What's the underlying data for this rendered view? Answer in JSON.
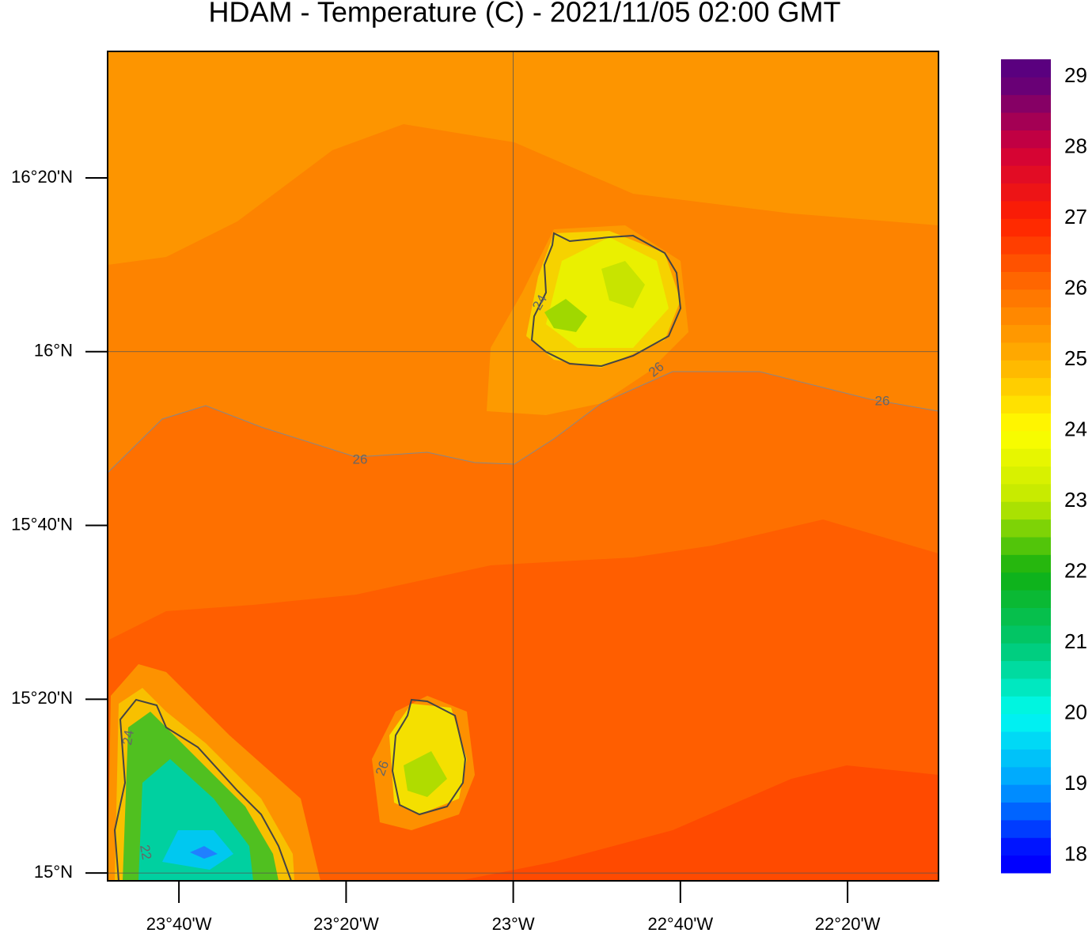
{
  "map": {
    "title": "HDAM - Temperature (C)  -  2021/11/05  02:00 GMT",
    "xlim": [
      -23.8089,
      -22.152
    ],
    "ylim": [
      14.985,
      16.576
    ],
    "xticks": [
      {
        "value": -23.6667,
        "label": "23°40'W"
      },
      {
        "value": -23.3333,
        "label": "23°20'W"
      },
      {
        "value": -23,
        "label": "23°W"
      },
      {
        "value": -22.6667,
        "label": "22°40'W"
      },
      {
        "value": -22.3333,
        "label": "22°20'W"
      }
    ],
    "yticks": [
      {
        "value": 16.3333,
        "label": "16°20'N"
      },
      {
        "value": 16,
        "label": "16°N"
      },
      {
        "value": 15.6667,
        "label": "15°40'N"
      },
      {
        "value": 15.3333,
        "label": "15°20'N"
      },
      {
        "value": 15,
        "label": "15°N"
      }
    ],
    "grid_x": [
      -23
    ],
    "grid_y": [
      16,
      15
    ],
    "contour_labels": [
      "26",
      "26",
      "26",
      "24",
      "24",
      "26",
      "22"
    ],
    "colorbar": {
      "range": [
        17.75,
        29.25
      ],
      "step": 0.25,
      "ticks": [
        18,
        19,
        20,
        21,
        22,
        23,
        24,
        25,
        26,
        27,
        28,
        29
      ],
      "stops": [
        {
          "value": 18,
          "color": "#0000ff"
        },
        {
          "value": 19,
          "color": "#00a0ff"
        },
        {
          "value": 20,
          "color": "#00fbf0"
        },
        {
          "value": 21,
          "color": "#00c870"
        },
        {
          "value": 22,
          "color": "#10b010"
        },
        {
          "value": 23,
          "color": "#c0e800"
        },
        {
          "value": 24,
          "color": "#ffff00"
        },
        {
          "value": 25,
          "color": "#ffb000"
        },
        {
          "value": 26,
          "color": "#ff7000"
        },
        {
          "value": 27,
          "color": "#ff2000"
        },
        {
          "value": 28,
          "color": "#d0003a"
        },
        {
          "value": 29,
          "color": "#5a007f"
        }
      ]
    }
  }
}
